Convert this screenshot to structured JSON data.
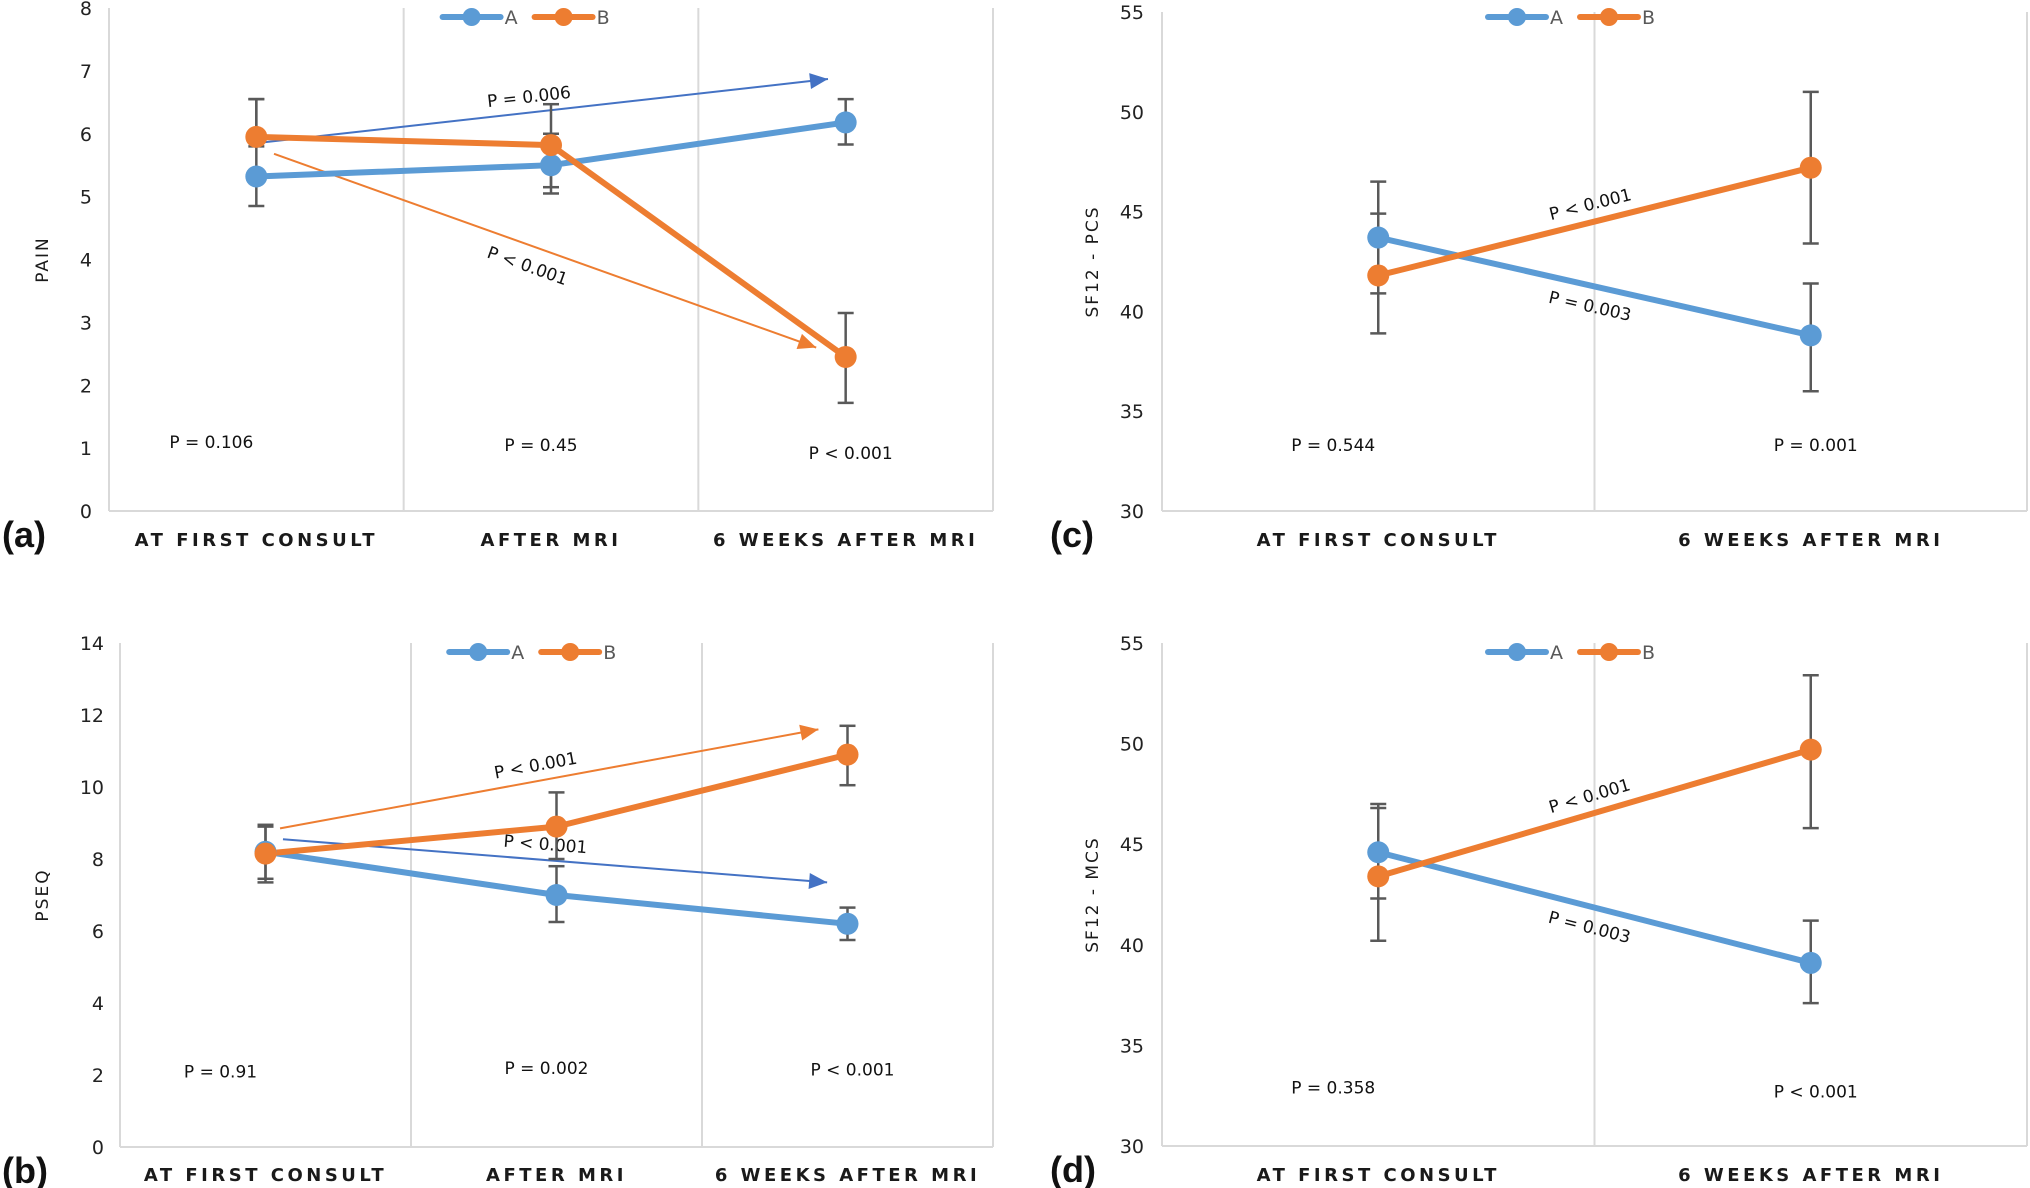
{
  "figure": {
    "colors": {
      "series_A": "#5B9BD5",
      "series_B": "#ED7D31",
      "arrow_A": "#4472C4",
      "arrow_B": "#ED7D31",
      "error_bar": "#595959",
      "grid": "#D9D9D9"
    }
  },
  "chart_data": [
    {
      "id": "a",
      "panel_label": "(a)",
      "type": "line",
      "ylabel": "PAIN",
      "xlabel": "",
      "categories": [
        "AT FIRST CONSULT",
        "AFTER MRI",
        "6 WEEKS AFTER MRI"
      ],
      "ylim": [
        0,
        8
      ],
      "yticks": [
        "0",
        "1",
        "2",
        "3",
        "4",
        "5",
        "6",
        "7",
        "8"
      ],
      "legend": [
        "A",
        "B"
      ],
      "legend_position": "top-center",
      "grid": "vertical-category-dividers",
      "series": [
        {
          "name": "A",
          "values": [
            5.32,
            5.5,
            6.18
          ],
          "err_upper": [
            6.55,
            6.0,
            6.55
          ],
          "err_lower": [
            4.85,
            5.05,
            5.83
          ]
        },
        {
          "name": "B",
          "values": [
            5.95,
            5.82,
            2.45
          ],
          "err_upper": [
            6.55,
            6.47,
            3.15
          ],
          "err_lower": [
            5.8,
            5.15,
            1.72
          ]
        }
      ],
      "group_pvalues": [
        "P = 0.106",
        "P = 0.45",
        "P < 0.001"
      ],
      "group_pvalue_y": [
        1.1,
        1.05,
        0.92
      ],
      "trend_annotations": [
        {
          "series": "A",
          "label": "P = 0.006",
          "from": [
            0,
            5.85
          ],
          "to": [
            1.94,
            6.87
          ]
        },
        {
          "series": "B",
          "label": "P < 0.001",
          "from": [
            0.06,
            5.68
          ],
          "to": [
            1.9,
            2.6
          ]
        }
      ]
    },
    {
      "id": "b",
      "panel_label": "(b)",
      "type": "line",
      "ylabel": "PSEQ",
      "xlabel": "",
      "categories": [
        "AT FIRST CONSULT",
        "AFTER MRI",
        "6 WEEKS AFTER MRI"
      ],
      "ylim": [
        0,
        14
      ],
      "yticks": [
        "0",
        "2",
        "4",
        "6",
        "8",
        "10",
        "12",
        "14"
      ],
      "legend": [
        "A",
        "B"
      ],
      "legend_position": "top-center",
      "grid": "vertical-category-dividers",
      "series": [
        {
          "name": "A",
          "values": [
            8.2,
            7.0,
            6.2
          ],
          "err_upper": [
            8.95,
            7.8,
            6.65
          ],
          "err_lower": [
            7.45,
            6.25,
            5.75
          ]
        },
        {
          "name": "B",
          "values": [
            8.15,
            8.9,
            10.9
          ],
          "err_upper": [
            8.9,
            9.85,
            11.7
          ],
          "err_lower": [
            7.35,
            8.0,
            10.05
          ]
        }
      ],
      "group_pvalues": [
        "P = 0.91",
        "P = 0.002",
        "P < 0.001"
      ],
      "group_pvalue_y": [
        2.1,
        2.2,
        2.15
      ],
      "trend_annotations": [
        {
          "series": "B",
          "label": "P < 0.001",
          "from": [
            0.05,
            8.85
          ],
          "to": [
            1.9,
            11.6
          ]
        },
        {
          "series": "A",
          "label": "P < 0.001",
          "from": [
            0.06,
            8.55
          ],
          "to": [
            1.93,
            7.35
          ]
        }
      ]
    },
    {
      "id": "c",
      "panel_label": "(c)",
      "type": "line",
      "ylabel": "SF12 - PCS",
      "xlabel": "",
      "categories": [
        "AT FIRST CONSULT",
        "6 WEEKS AFTER MRI"
      ],
      "ylim": [
        30,
        55
      ],
      "yticks": [
        "30",
        "35",
        "40",
        "45",
        "50",
        "55"
      ],
      "legend": [
        "A",
        "B"
      ],
      "legend_position": "top-center",
      "grid": "vertical-category-dividers",
      "series": [
        {
          "name": "A",
          "values": [
            43.7,
            38.8
          ],
          "err_upper": [
            46.5,
            41.4
          ],
          "err_lower": [
            40.9,
            36.0
          ]
        },
        {
          "name": "B",
          "values": [
            41.8,
            47.2
          ],
          "err_upper": [
            44.9,
            51.0
          ],
          "err_lower": [
            38.9,
            43.4
          ]
        }
      ],
      "group_pvalues": [
        "P = 0.544",
        "P = 0.001"
      ],
      "group_pvalue_y": [
        33.3,
        33.3
      ],
      "line_labels": [
        {
          "series": "B",
          "label": "P < 0.001"
        },
        {
          "series": "A",
          "label": "P = 0.003"
        }
      ]
    },
    {
      "id": "d",
      "panel_label": "(d)",
      "type": "line",
      "ylabel": "SF12 - MCS",
      "xlabel": "",
      "categories": [
        "AT FIRST CONSULT",
        "6 WEEKS AFTER MRI"
      ],
      "ylim": [
        30,
        55
      ],
      "yticks": [
        "30",
        "35",
        "40",
        "45",
        "50",
        "55"
      ],
      "legend": [
        "A",
        "B"
      ],
      "legend_position": "top-center",
      "grid": "vertical-category-dividers",
      "series": [
        {
          "name": "A",
          "values": [
            44.6,
            39.1
          ],
          "err_upper": [
            47.0,
            41.2
          ],
          "err_lower": [
            42.3,
            37.1
          ]
        },
        {
          "name": "B",
          "values": [
            43.4,
            49.7
          ],
          "err_upper": [
            46.8,
            53.4
          ],
          "err_lower": [
            40.2,
            45.8
          ]
        }
      ],
      "group_pvalues": [
        "P = 0.358",
        "P < 0.001"
      ],
      "group_pvalue_y": [
        32.9,
        32.7
      ],
      "line_labels": [
        {
          "series": "B",
          "label": "P < 0.001"
        },
        {
          "series": "A",
          "label": "P = 0.003"
        }
      ]
    }
  ]
}
